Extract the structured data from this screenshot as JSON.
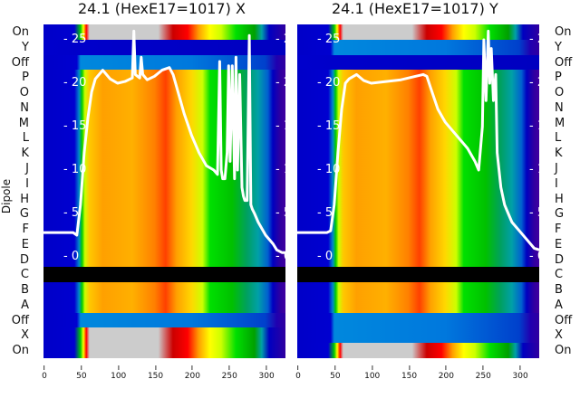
{
  "chart_data": [
    {
      "type": "heatmap",
      "title": "24.1 (HexE17=1017) X",
      "ylabel": "Dipole",
      "xlim": [
        0,
        327
      ],
      "xticks": [
        "0",
        "50",
        "100",
        "150",
        "200",
        "250",
        "300"
      ],
      "row_labels": [
        "On",
        "Y",
        "Off",
        "P",
        "O",
        "N",
        "M",
        "L",
        "K",
        "J",
        "I",
        "H",
        "G",
        "F",
        "E",
        "D",
        "C",
        "B",
        "A",
        "Off",
        "X",
        "On"
      ],
      "row_profiles": [
        "on",
        "y",
        "off",
        "beam",
        "beam",
        "beam",
        "beam",
        "beam",
        "beam",
        "beam",
        "beam",
        "beam",
        "beam",
        "beam",
        "beam",
        "beam",
        "black",
        "beam",
        "beam",
        "off",
        "on",
        "on"
      ],
      "overlay": {
        "type": "line",
        "ylim": [
          0,
          25
        ],
        "yticks": [
          "0",
          "5",
          "10",
          "15",
          "20",
          "25"
        ],
        "x": [
          0,
          40,
          45,
          50,
          55,
          60,
          65,
          70,
          80,
          90,
          100,
          110,
          120,
          122,
          124,
          130,
          132,
          134,
          140,
          150,
          160,
          170,
          175,
          180,
          190,
          200,
          210,
          220,
          230,
          235,
          238,
          240,
          242,
          245,
          248,
          250,
          252,
          255,
          258,
          260,
          262,
          265,
          268,
          270,
          272,
          275,
          278,
          280,
          282,
          285,
          290,
          300,
          310,
          315,
          322,
          327
        ],
        "y": [
          2.8,
          2.8,
          2.5,
          6,
          12,
          16,
          19,
          20.5,
          21.5,
          20.5,
          20,
          20.2,
          20.6,
          26,
          21,
          20.6,
          23,
          21,
          20.4,
          20.8,
          21.5,
          21.8,
          21,
          19.5,
          16.5,
          14,
          12,
          10.5,
          10,
          9.5,
          22.5,
          10,
          9,
          9,
          12,
          22,
          11,
          22,
          9,
          23,
          10,
          21,
          8,
          7,
          6.5,
          6.5,
          25.5,
          6,
          5.5,
          5,
          4,
          2.5,
          1.5,
          0.8,
          0.5,
          0.5
        ]
      }
    },
    {
      "type": "heatmap",
      "title": "24.1 (HexE17=1017) Y",
      "xlim": [
        0,
        327
      ],
      "xticks": [
        "0",
        "50",
        "100",
        "150",
        "200",
        "250",
        "300"
      ],
      "row_labels": [
        "On",
        "Y",
        "Off",
        "P",
        "O",
        "N",
        "M",
        "L",
        "K",
        "J",
        "I",
        "H",
        "G",
        "F",
        "E",
        "D",
        "C",
        "B",
        "A",
        "Off",
        "X",
        "On"
      ],
      "row_profiles": [
        "on",
        "off",
        "y",
        "beam",
        "beam",
        "beam",
        "beam",
        "beam",
        "beam",
        "beam",
        "beam",
        "beam",
        "beam",
        "beam",
        "beam",
        "beam",
        "black",
        "beam",
        "beam",
        "off",
        "off",
        "on"
      ],
      "overlay": {
        "type": "line",
        "ylim": [
          0,
          25
        ],
        "yticks": [
          "0",
          "5",
          "10",
          "15",
          "20",
          "25"
        ],
        "x": [
          0,
          40,
          45,
          50,
          55,
          60,
          65,
          70,
          80,
          90,
          100,
          120,
          140,
          160,
          170,
          175,
          180,
          190,
          200,
          210,
          220,
          230,
          240,
          245,
          250,
          252,
          255,
          258,
          260,
          262,
          265,
          268,
          270,
          275,
          280,
          285,
          290,
          300,
          310,
          320,
          327
        ],
        "y": [
          2.8,
          2.8,
          3,
          6,
          12,
          17,
          20,
          20.5,
          21,
          20.3,
          20,
          20.2,
          20.4,
          20.8,
          21,
          20.8,
          19.5,
          17,
          15.5,
          14.5,
          13.5,
          12.5,
          11,
          10,
          15,
          25,
          18,
          26,
          20,
          24,
          18,
          21,
          12,
          8,
          6,
          5,
          4,
          3,
          2,
          1,
          0.8
        ]
      }
    }
  ],
  "colors": {
    "profiles": {
      "beam": [
        [
          0,
          "#0000c8"
        ],
        [
          42,
          "#0000d0"
        ],
        [
          48,
          "#0088cc"
        ],
        [
          52,
          "#00cc00"
        ],
        [
          56,
          "#ccff00"
        ],
        [
          62,
          "#ffc800"
        ],
        [
          80,
          "#ffa000"
        ],
        [
          120,
          "#ffb000"
        ],
        [
          150,
          "#ff8000"
        ],
        [
          165,
          "#ff4000"
        ],
        [
          180,
          "#ffa000"
        ],
        [
          200,
          "#ffd800"
        ],
        [
          215,
          "#ccff00"
        ],
        [
          225,
          "#00e000"
        ],
        [
          255,
          "#00c000"
        ],
        [
          275,
          "#00a060"
        ],
        [
          290,
          "#00a0a8"
        ],
        [
          303,
          "#0060d0"
        ],
        [
          310,
          "#0000c0"
        ],
        [
          320,
          "#3000a0"
        ],
        [
          327,
          "#4000a0"
        ]
      ],
      "on": [
        [
          0,
          "#0000c8"
        ],
        [
          42,
          "#0000d0"
        ],
        [
          50,
          "#00cc00"
        ],
        [
          54,
          "#ffff00"
        ],
        [
          58,
          "#ff0000"
        ],
        [
          62,
          "#cccccc"
        ],
        [
          155,
          "#cccccc"
        ],
        [
          165,
          "#d06060"
        ],
        [
          175,
          "#cc0000"
        ],
        [
          195,
          "#ff0000"
        ],
        [
          210,
          "#ffa000"
        ],
        [
          225,
          "#ffff00"
        ],
        [
          240,
          "#ccff00"
        ],
        [
          260,
          "#00e000"
        ],
        [
          285,
          "#00a000"
        ],
        [
          295,
          "#00a0a8"
        ],
        [
          305,
          "#0000c0"
        ],
        [
          327,
          "#3000a0"
        ]
      ],
      "off": [
        [
          0,
          "#0000c8"
        ],
        [
          45,
          "#0000d0"
        ],
        [
          50,
          "#0088dd"
        ],
        [
          200,
          "#0078dd"
        ],
        [
          300,
          "#0040cc"
        ],
        [
          315,
          "#2000b0"
        ],
        [
          327,
          "#3000a0"
        ]
      ],
      "y": [
        [
          0,
          "#0000cc"
        ],
        [
          327,
          "#0000c0"
        ]
      ],
      "black": [
        [
          0,
          "#000000"
        ],
        [
          327,
          "#000000"
        ]
      ]
    },
    "line": "#ffffff"
  }
}
